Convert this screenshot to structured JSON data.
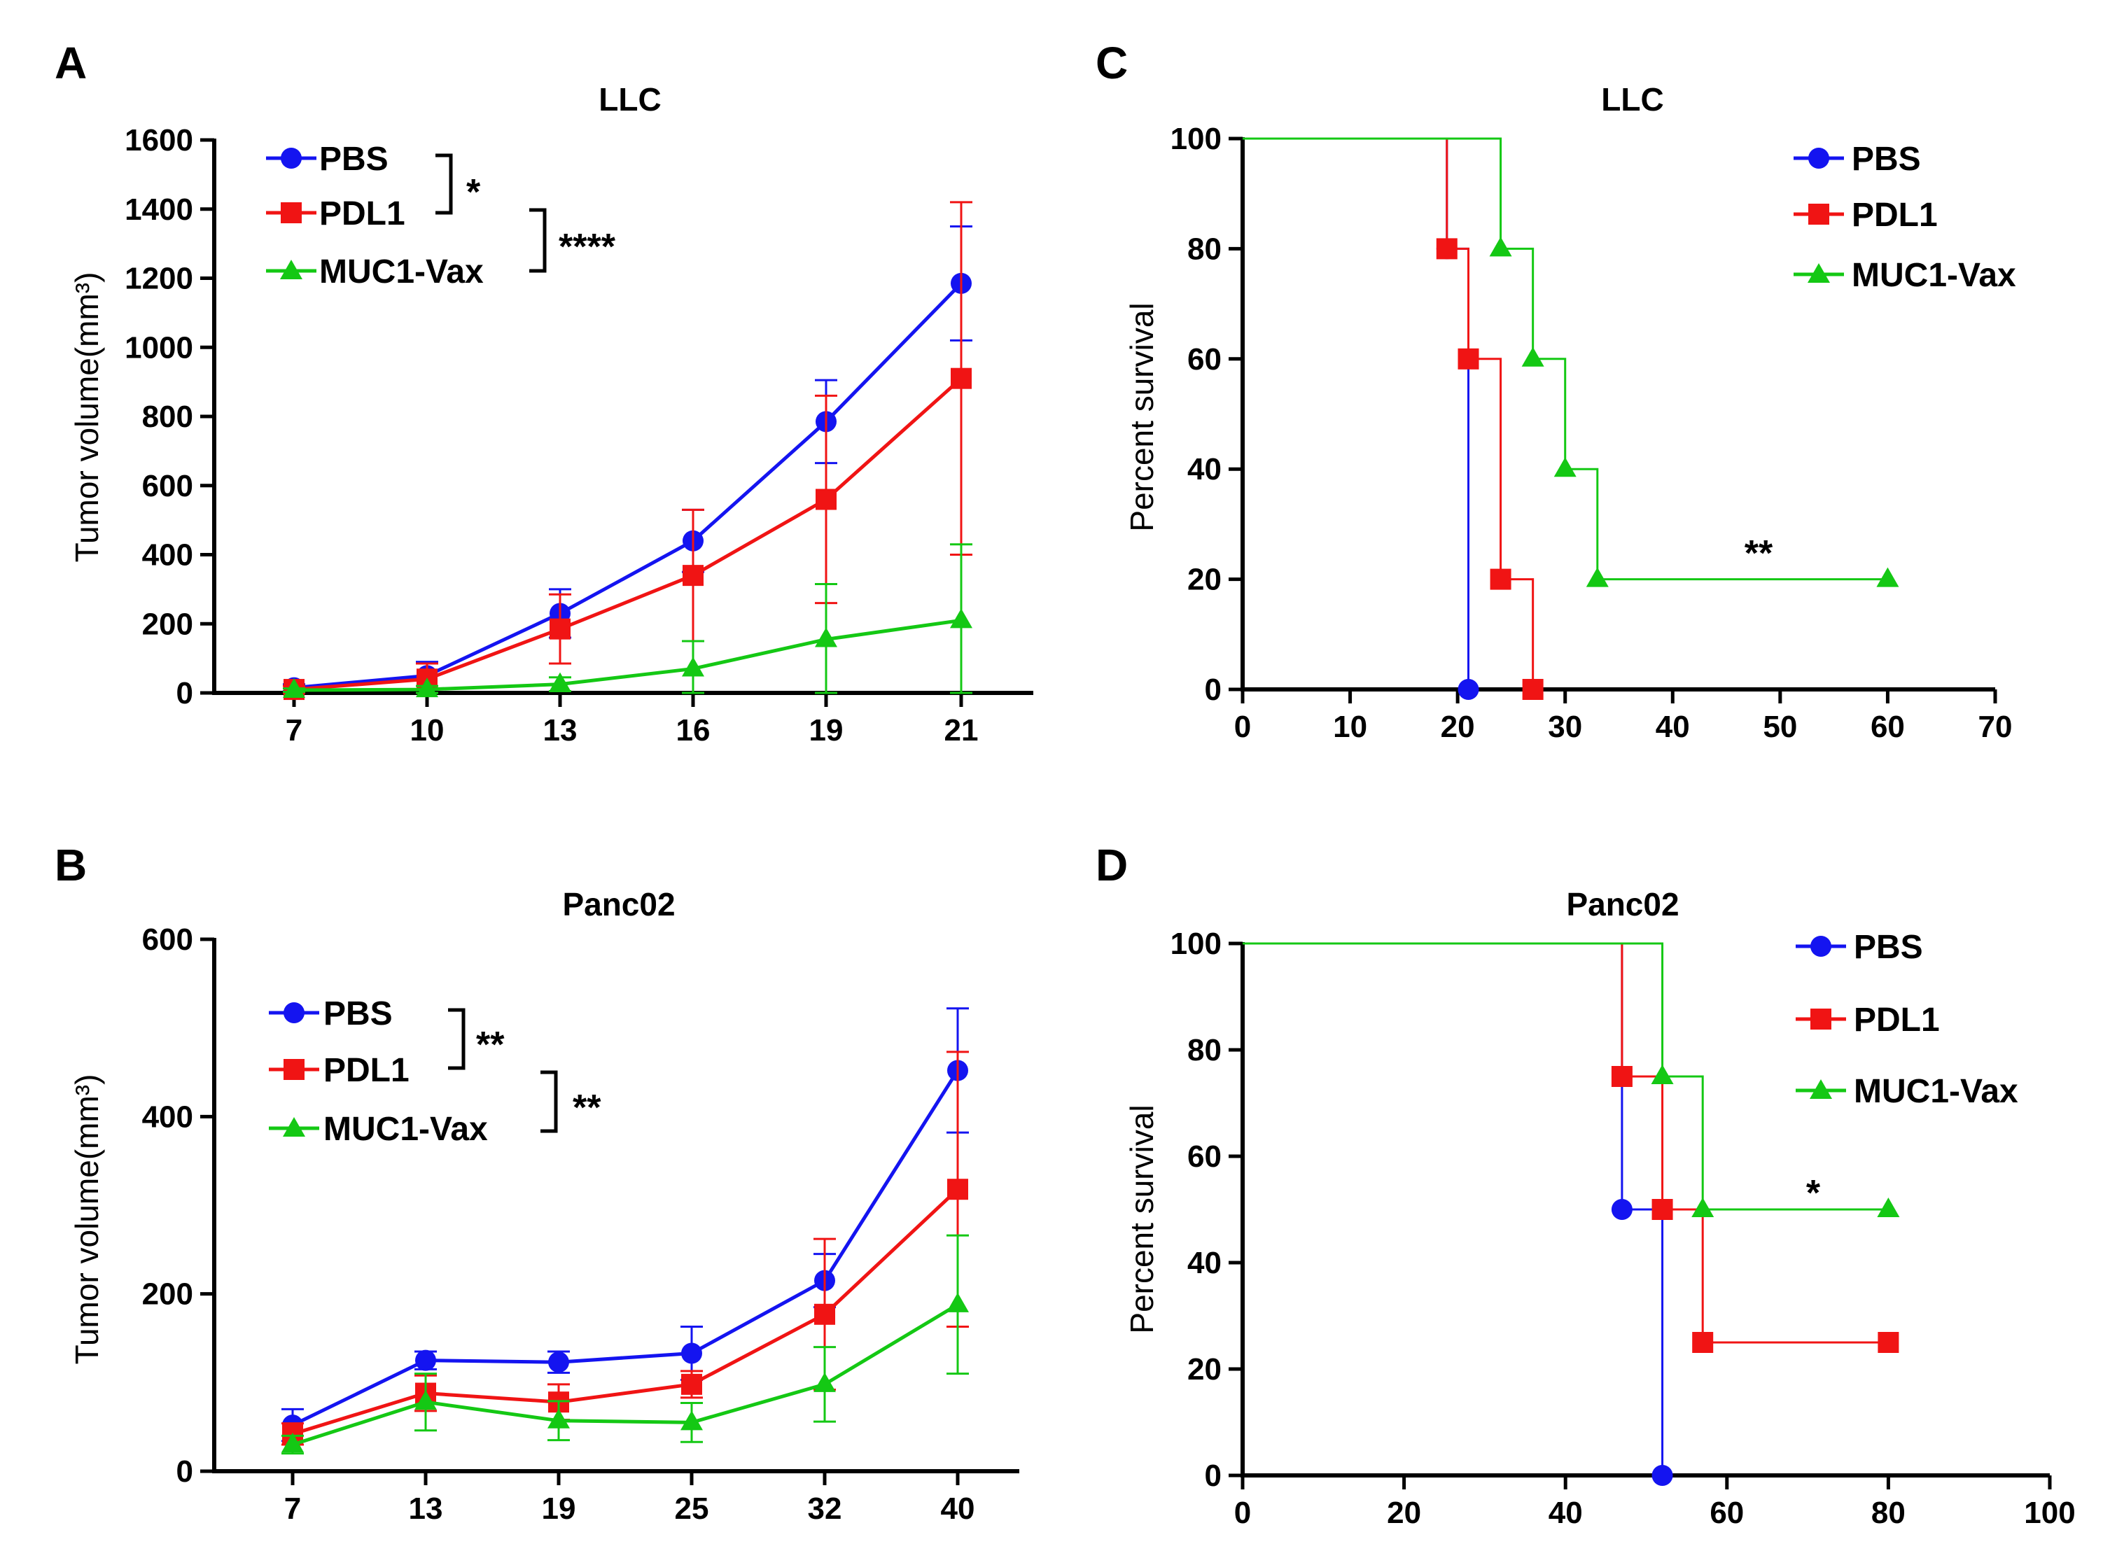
{
  "colors": {
    "PBS": "#1414f0",
    "PDL1": "#f01414",
    "MUC1-Vax": "#14c814"
  },
  "chart_data": [
    {
      "panel": "A",
      "type": "line",
      "title": "LLC",
      "xlabel": "",
      "ylabel": "Tumor volume(mm³)",
      "ylim": [
        0,
        1600
      ],
      "yticks": [
        "0",
        "200",
        "400",
        "600",
        "800",
        "1000",
        "1200",
        "1400",
        "1600"
      ],
      "categories": [
        "7",
        "10",
        "13",
        "16",
        "19",
        "21"
      ],
      "series": [
        {
          "name": "PBS",
          "marker": "circle",
          "values": [
            15,
            50,
            230,
            440,
            785,
            1185
          ],
          "err": [
            10,
            40,
            70,
            90,
            120,
            165
          ]
        },
        {
          "name": "PDL1",
          "marker": "square",
          "values": [
            10,
            40,
            185,
            340,
            560,
            910
          ],
          "err": [
            10,
            45,
            100,
            190,
            300,
            510
          ]
        },
        {
          "name": "MUC1-Vax",
          "marker": "triangle",
          "values": [
            8,
            10,
            25,
            70,
            155,
            210
          ],
          "err": [
            5,
            10,
            20,
            80,
            160,
            220
          ]
        }
      ],
      "annotations": [
        "*",
        "****"
      ]
    },
    {
      "panel": "B",
      "type": "line",
      "title": "Panc02",
      "xlabel": "",
      "ylabel": "Tumor volume(mm³)",
      "ylim": [
        0,
        600
      ],
      "yticks": [
        "0",
        "200",
        "400",
        "600"
      ],
      "categories": [
        "7",
        "13",
        "19",
        "25",
        "32",
        "40"
      ],
      "series": [
        {
          "name": "PBS",
          "marker": "circle",
          "values": [
            52,
            125,
            123,
            133,
            215,
            452
          ],
          "err": [
            18,
            10,
            12,
            30,
            30,
            70
          ]
        },
        {
          "name": "PDL1",
          "marker": "square",
          "values": [
            42,
            88,
            78,
            98,
            177,
            318
          ],
          "err": [
            12,
            20,
            20,
            15,
            85,
            155
          ]
        },
        {
          "name": "MUC1-Vax",
          "marker": "triangle",
          "values": [
            30,
            78,
            57,
            55,
            98,
            188
          ],
          "err": [
            10,
            32,
            22,
            22,
            42,
            78
          ]
        }
      ],
      "annotations": [
        "**",
        "**"
      ]
    },
    {
      "panel": "C",
      "type": "line",
      "subtype": "survival",
      "title": "LLC",
      "xlabel": "",
      "ylabel": "Percent survival",
      "xlim": [
        0,
        70
      ],
      "ylim": [
        0,
        100
      ],
      "xticks": [
        "0",
        "10",
        "20",
        "30",
        "40",
        "50",
        "60",
        "70"
      ],
      "yticks": [
        "0",
        "20",
        "40",
        "60",
        "80",
        "100"
      ],
      "series": [
        {
          "name": "PBS",
          "marker": "circle",
          "steps": [
            [
              0,
              100
            ],
            [
              19,
              80
            ],
            [
              21,
              0
            ]
          ],
          "markers": [
            [
              19,
              80
            ],
            [
              21,
              0
            ]
          ]
        },
        {
          "name": "PDL1",
          "marker": "square",
          "steps": [
            [
              0,
              100
            ],
            [
              19,
              80
            ],
            [
              21,
              60
            ],
            [
              24,
              20
            ],
            [
              27,
              0
            ]
          ],
          "markers": [
            [
              19,
              80
            ],
            [
              21,
              60
            ],
            [
              24,
              20
            ],
            [
              27,
              0
            ]
          ]
        },
        {
          "name": "MUC1-Vax",
          "marker": "triangle",
          "steps": [
            [
              0,
              100
            ],
            [
              24,
              80
            ],
            [
              27,
              60
            ],
            [
              30,
              40
            ],
            [
              33,
              20
            ],
            [
              60,
              20
            ]
          ],
          "markers": [
            [
              24,
              80
            ],
            [
              27,
              60
            ],
            [
              30,
              40
            ],
            [
              33,
              20
            ],
            [
              60,
              20
            ]
          ]
        }
      ],
      "annotations": [
        "**"
      ]
    },
    {
      "panel": "D",
      "type": "line",
      "subtype": "survival",
      "title": "Panc02",
      "xlabel": "",
      "ylabel": "Percent survival",
      "xlim": [
        0,
        100
      ],
      "ylim": [
        0,
        100
      ],
      "xticks": [
        "0",
        "20",
        "40",
        "60",
        "80",
        "100"
      ],
      "yticks": [
        "0",
        "20",
        "40",
        "60",
        "80",
        "100"
      ],
      "series": [
        {
          "name": "PBS",
          "marker": "circle",
          "steps": [
            [
              0,
              100
            ],
            [
              47,
              50
            ],
            [
              52,
              0
            ]
          ],
          "markers": [
            [
              47,
              50
            ],
            [
              52,
              0
            ]
          ]
        },
        {
          "name": "PDL1",
          "marker": "square",
          "steps": [
            [
              0,
              100
            ],
            [
              47,
              75
            ],
            [
              52,
              50
            ],
            [
              57,
              25
            ],
            [
              80,
              25
            ]
          ],
          "markers": [
            [
              47,
              75
            ],
            [
              52,
              50
            ],
            [
              57,
              25
            ],
            [
              80,
              25
            ]
          ]
        },
        {
          "name": "MUC1-Vax",
          "marker": "triangle",
          "steps": [
            [
              0,
              100
            ],
            [
              52,
              75
            ],
            [
              57,
              50
            ],
            [
              80,
              50
            ]
          ],
          "markers": [
            [
              52,
              75
            ],
            [
              57,
              50
            ],
            [
              80,
              50
            ]
          ]
        }
      ],
      "annotations": [
        "*"
      ]
    }
  ]
}
